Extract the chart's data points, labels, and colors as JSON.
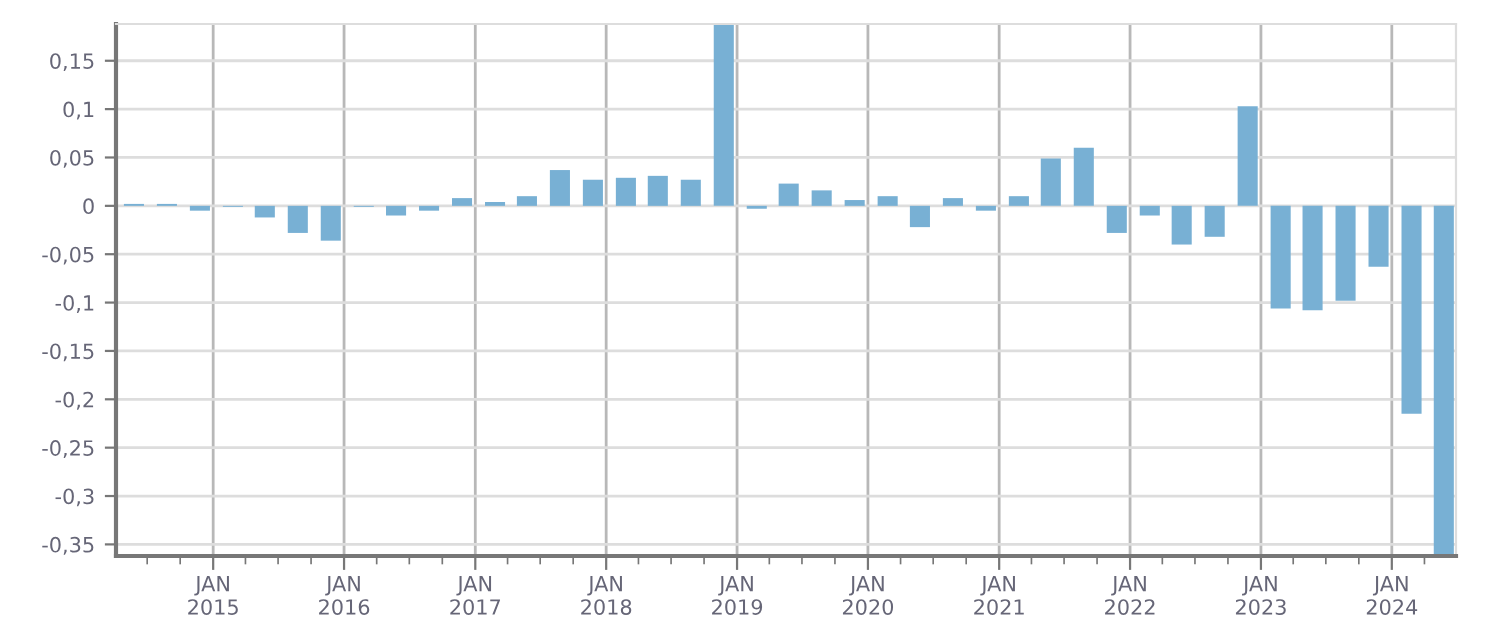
{
  "chart_data": {
    "type": "bar",
    "color": "#78b0d4",
    "x": [
      "2014-05-25",
      "2014-08-25",
      "2014-11-25",
      "2015-02-25",
      "2015-05-25",
      "2015-08-25",
      "2015-11-25",
      "2016-02-25",
      "2016-05-25",
      "2016-08-25",
      "2016-11-25",
      "2017-02-25",
      "2017-05-25",
      "2017-08-25",
      "2017-11-25",
      "2018-02-25",
      "2018-05-25",
      "2018-08-25",
      "2018-11-25",
      "2019-02-25",
      "2019-05-25",
      "2019-08-25",
      "2019-11-25",
      "2020-02-25",
      "2020-05-25",
      "2020-08-25",
      "2020-11-25",
      "2021-02-25",
      "2021-05-25",
      "2021-08-25",
      "2021-11-25",
      "2022-02-25",
      "2022-05-25",
      "2022-08-25",
      "2022-11-25",
      "2023-02-25",
      "2023-05-25",
      "2023-08-25",
      "2023-11-25",
      "2024-02-25",
      "2024-05-25"
    ],
    "values": [
      0.002,
      0.002,
      -0.005,
      -0.001,
      -0.012,
      -0.028,
      -0.036,
      -0.001,
      -0.01,
      -0.005,
      0.008,
      0.004,
      0.01,
      0.037,
      0.027,
      0.029,
      0.031,
      0.027,
      0.187,
      -0.003,
      0.023,
      0.016,
      0.006,
      0.01,
      -0.022,
      0.008,
      -0.005,
      0.01,
      0.049,
      0.06,
      -0.028,
      -0.01,
      -0.04,
      -0.032,
      0.103,
      -0.106,
      -0.108,
      -0.098,
      -0.063,
      -0.215,
      -0.36
    ],
    "xlim": [
      "2014-04-05",
      "2024-06-28"
    ],
    "xticks": [
      {
        "value": "2014-07-01",
        "label": null
      },
      {
        "value": "2014-10-01",
        "label": null
      },
      {
        "value": "2015-01-01",
        "label": "JAN\n2015"
      },
      {
        "value": "2015-04-01",
        "label": null
      },
      {
        "value": "2015-07-01",
        "label": null
      },
      {
        "value": "2015-10-01",
        "label": null
      },
      {
        "value": "2016-01-01",
        "label": "JAN\n2016"
      },
      {
        "value": "2016-04-01",
        "label": null
      },
      {
        "value": "2016-07-01",
        "label": null
      },
      {
        "value": "2016-10-01",
        "label": null
      },
      {
        "value": "2017-01-01",
        "label": "JAN\n2017"
      },
      {
        "value": "2017-04-01",
        "label": null
      },
      {
        "value": "2017-07-01",
        "label": null
      },
      {
        "value": "2017-10-01",
        "label": null
      },
      {
        "value": "2018-01-01",
        "label": "JAN\n2018"
      },
      {
        "value": "2018-04-01",
        "label": null
      },
      {
        "value": "2018-07-01",
        "label": null
      },
      {
        "value": "2018-10-01",
        "label": null
      },
      {
        "value": "2019-01-01",
        "label": "JAN\n2019"
      },
      {
        "value": "2019-04-01",
        "label": null
      },
      {
        "value": "2019-07-01",
        "label": null
      },
      {
        "value": "2019-10-01",
        "label": null
      },
      {
        "value": "2020-01-01",
        "label": "JAN\n2020"
      },
      {
        "value": "2020-04-01",
        "label": null
      },
      {
        "value": "2020-07-01",
        "label": null
      },
      {
        "value": "2020-10-01",
        "label": null
      },
      {
        "value": "2021-01-01",
        "label": "JAN\n2021"
      },
      {
        "value": "2021-04-01",
        "label": null
      },
      {
        "value": "2021-07-01",
        "label": null
      },
      {
        "value": "2021-10-01",
        "label": null
      },
      {
        "value": "2022-01-01",
        "label": "JAN\n2022"
      },
      {
        "value": "2022-04-01",
        "label": null
      },
      {
        "value": "2022-07-01",
        "label": null
      },
      {
        "value": "2022-10-01",
        "label": null
      },
      {
        "value": "2023-01-01",
        "label": "JAN\n2023"
      },
      {
        "value": "2023-04-01",
        "label": null
      },
      {
        "value": "2023-07-01",
        "label": null
      },
      {
        "value": "2023-10-01",
        "label": null
      },
      {
        "value": "2024-01-01",
        "label": "JAN\n2024"
      },
      {
        "value": "2024-04-01",
        "label": null
      }
    ],
    "ylim": [
      -0.362,
      0.188
    ],
    "yticks": [
      {
        "value": -0.35,
        "label": "-0,35"
      },
      {
        "value": -0.3,
        "label": "-0,3"
      },
      {
        "value": -0.25,
        "label": "-0,25"
      },
      {
        "value": -0.2,
        "label": "-0,2"
      },
      {
        "value": -0.15,
        "label": "-0,15"
      },
      {
        "value": -0.1,
        "label": "-0,1"
      },
      {
        "value": -0.05,
        "label": "-0,05"
      },
      {
        "value": 0,
        "label": "0"
      },
      {
        "value": 0.05,
        "label": "0,05"
      },
      {
        "value": 0.1,
        "label": "0,1"
      },
      {
        "value": 0.15,
        "label": "0,15"
      }
    ],
    "grid": true
  }
}
